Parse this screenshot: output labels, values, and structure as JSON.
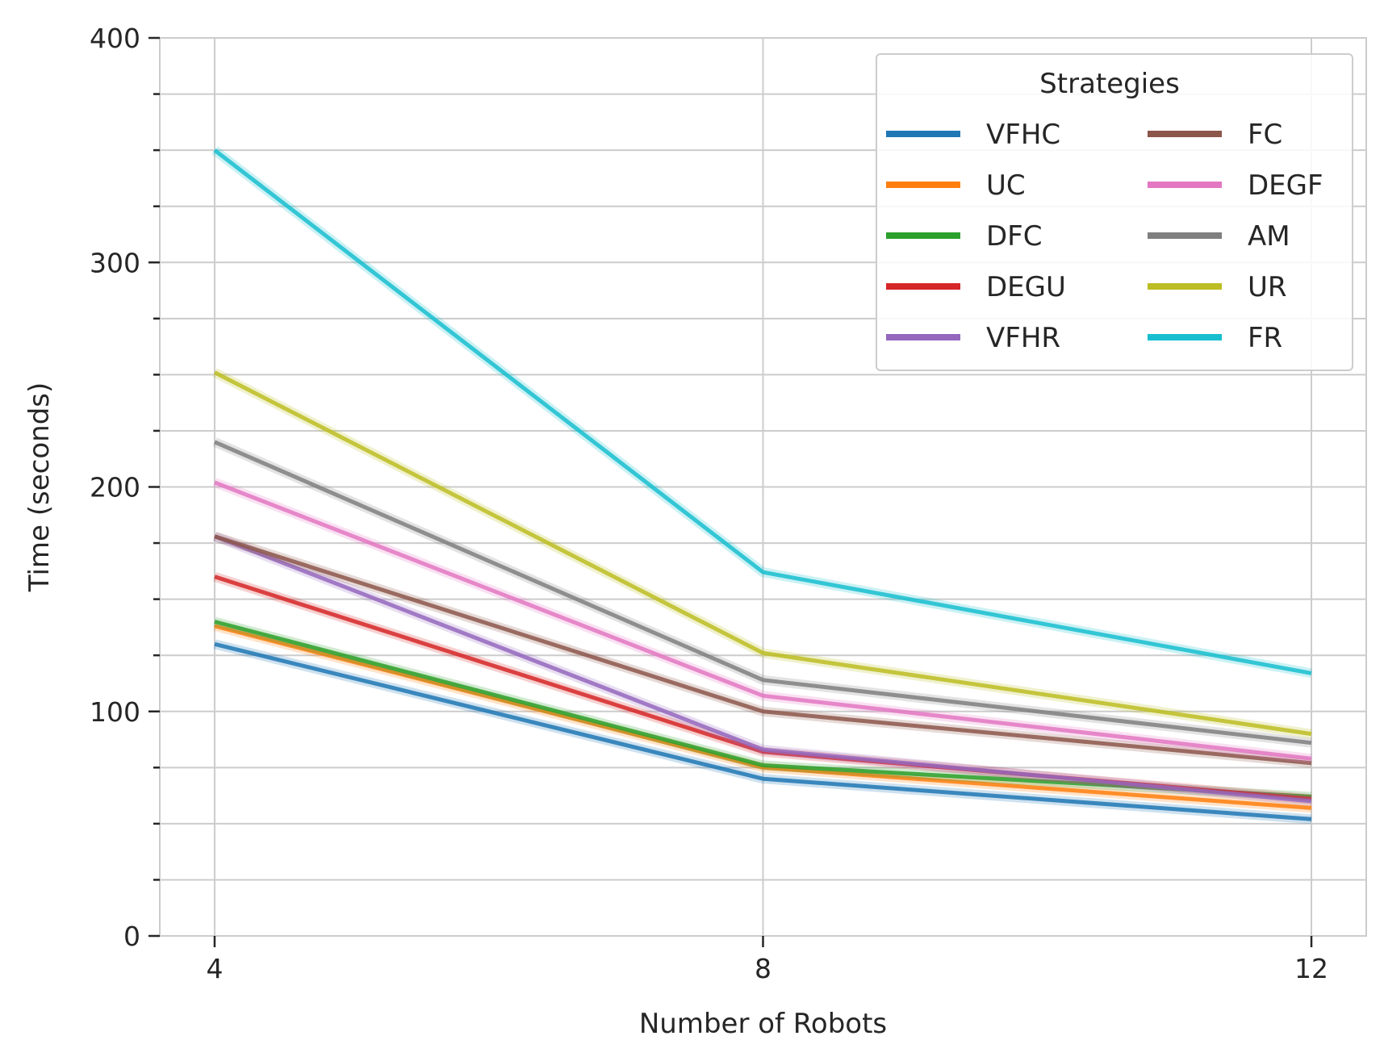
{
  "chart_data": {
    "type": "line",
    "title": "",
    "xlabel": "Number of Robots",
    "ylabel": "Time (seconds)",
    "x": [
      4,
      8,
      12
    ],
    "x_tick_labels": [
      "4",
      "8",
      "12"
    ],
    "xlim": [
      3.6,
      12.4
    ],
    "ylim": [
      0,
      400
    ],
    "y_ticks": [
      0,
      100,
      200,
      300,
      400
    ],
    "y_tick_labels": [
      "0",
      "100",
      "200",
      "300",
      "400"
    ],
    "y_minor_ticks": [
      25,
      50,
      75,
      125,
      150,
      175,
      225,
      250,
      275,
      325,
      350,
      375
    ],
    "grid": true,
    "legend": {
      "title": "Strategies",
      "placement": "top-right",
      "columns": 2
    },
    "series": [
      {
        "name": "VFHC",
        "color": "#1f77b4",
        "values": [
          130,
          70,
          52
        ]
      },
      {
        "name": "UC",
        "color": "#ff7f0e",
        "values": [
          138,
          75,
          57
        ]
      },
      {
        "name": "DFC",
        "color": "#2ca02c",
        "values": [
          140,
          76,
          62
        ]
      },
      {
        "name": "DEGU",
        "color": "#d62728",
        "values": [
          160,
          82,
          61
        ]
      },
      {
        "name": "VFHR",
        "color": "#9467bd",
        "values": [
          178,
          83,
          60
        ]
      },
      {
        "name": "FC",
        "color": "#8c564b",
        "values": [
          178,
          100,
          77
        ]
      },
      {
        "name": "DEGF",
        "color": "#e377c2",
        "values": [
          202,
          107,
          79
        ]
      },
      {
        "name": "AM",
        "color": "#7f7f7f",
        "values": [
          220,
          114,
          86
        ]
      },
      {
        "name": "UR",
        "color": "#bcbd22",
        "values": [
          251,
          126,
          90
        ]
      },
      {
        "name": "FR",
        "color": "#17becf",
        "values": [
          350,
          162,
          117
        ]
      }
    ]
  }
}
